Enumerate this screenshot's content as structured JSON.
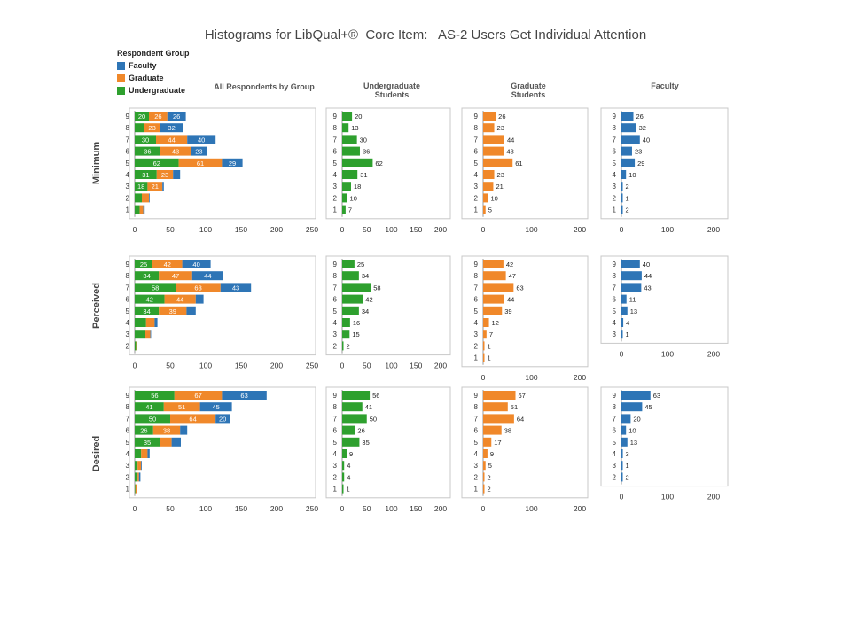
{
  "title": "Histograms for LibQual+®  Core Item:   AS-2 Users Get Individual Attention",
  "legend": {
    "title": "Respondent Group",
    "items": [
      {
        "label": "Faculty",
        "color": "#2e75b6"
      },
      {
        "label": "Graduate",
        "color": "#f0882a"
      },
      {
        "label": "Undergraduate",
        "color": "#2ea02e"
      }
    ]
  },
  "columns": [
    {
      "key": "all",
      "label": "All Respondents by Group"
    },
    {
      "key": "ug",
      "label": "Undergraduate Students"
    },
    {
      "key": "grad",
      "label": "Graduate Students"
    },
    {
      "key": "fac",
      "label": "Faculty"
    }
  ],
  "rows": [
    {
      "key": "min",
      "label": "Minimum"
    },
    {
      "key": "per",
      "label": "Perceived"
    },
    {
      "key": "des",
      "label": "Desired"
    }
  ],
  "chart_data": {
    "type": "bar",
    "orientation": "horizontal",
    "series_order": [
      "Undergraduate",
      "Graduate",
      "Faculty"
    ],
    "axes": {
      "all": {
        "max": 250,
        "ticks": [
          0,
          50,
          100,
          150,
          200,
          250
        ]
      },
      "ug": {
        "max": 200,
        "ticks": [
          0,
          50,
          100,
          150,
          200
        ]
      },
      "grad": {
        "max": 200,
        "ticks": [
          0,
          100,
          200
        ]
      },
      "fac": {
        "max": 200,
        "ticks": [
          0,
          100,
          200
        ]
      }
    },
    "panels": {
      "min": {
        "categories": [
          "9",
          "8",
          "7",
          "6",
          "5",
          "4",
          "3",
          "2",
          "1"
        ],
        "Undergraduate": [
          20,
          13,
          30,
          36,
          62,
          31,
          18,
          10,
          7
        ],
        "Graduate": [
          26,
          23,
          44,
          43,
          61,
          23,
          21,
          10,
          5
        ],
        "Faculty": [
          26,
          32,
          40,
          23,
          29,
          10,
          2,
          1,
          2
        ]
      },
      "per": {
        "categories": [
          "9",
          "8",
          "7",
          "6",
          "5",
          "4",
          "3",
          "2",
          "1"
        ],
        "Undergraduate": [
          25,
          34,
          58,
          42,
          34,
          16,
          15,
          2,
          null
        ],
        "Graduate": [
          42,
          47,
          63,
          44,
          39,
          12,
          7,
          1,
          1
        ],
        "Faculty": [
          40,
          44,
          43,
          11,
          13,
          4,
          1,
          null,
          null
        ]
      },
      "des": {
        "categories": [
          "9",
          "8",
          "7",
          "6",
          "5",
          "4",
          "3",
          "2",
          "1"
        ],
        "Undergraduate": [
          56,
          41,
          50,
          26,
          35,
          9,
          4,
          4,
          1
        ],
        "Graduate": [
          67,
          51,
          64,
          38,
          17,
          9,
          5,
          2,
          2
        ],
        "Faculty": [
          63,
          45,
          20,
          10,
          13,
          3,
          1,
          2,
          null
        ]
      }
    }
  }
}
